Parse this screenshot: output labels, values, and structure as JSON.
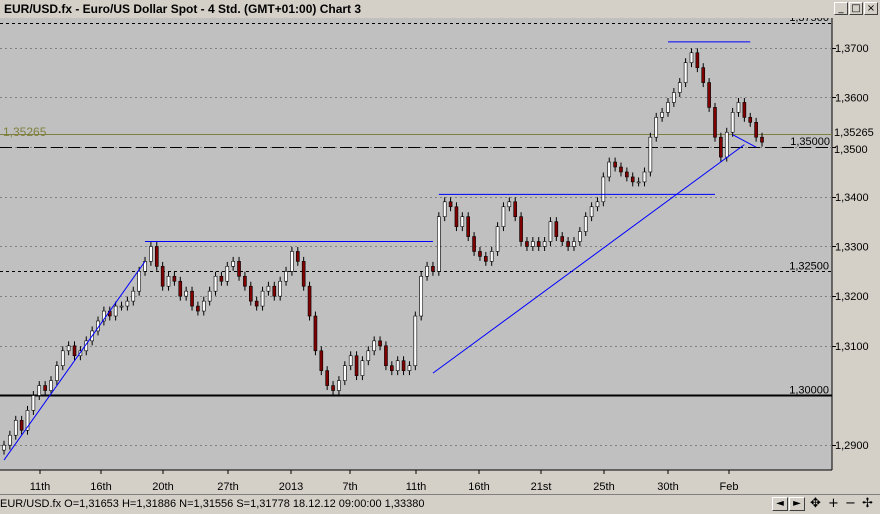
{
  "window": {
    "title": "EUR/USD.fx - Euro/US Dollar Spot - 4 Std. (GMT+01:00)   Chart 3"
  },
  "status": {
    "text": "EUR/USD.fx O=1,31653 H=1,31886 N=1,31556 S=1,31778   18.12.12 09:00:00 1,33380"
  },
  "icons": {
    "minimize": "minimize-icon",
    "maximize": "maximize-icon",
    "close": "close-icon"
  },
  "colors": {
    "plot_bg": "#c0c0c0",
    "trendline": "#0000ff",
    "candle_up": "#ffffff",
    "candle_down": "#800000",
    "ref_line": "#808040"
  },
  "chart_data": {
    "type": "candlestick",
    "symbol": "EUR/USD.fx",
    "timeframe": "4 Std.",
    "ylim": [
      1.285,
      1.376
    ],
    "y_axis_labels": [
      "1,37500",
      "1,3700",
      "1,3600",
      "1,35265",
      "1,35000",
      "1,3500",
      "1,3400",
      "1,3300",
      "1,32500",
      "1,3200",
      "1,3100",
      "1,30000",
      "1,2900"
    ],
    "x_labels": [
      "11th",
      "16th",
      "20th",
      "27th",
      "2013",
      "7th",
      "11th",
      "16th",
      "21st",
      "25th",
      "30th",
      "Feb"
    ],
    "left_label": "1,35265",
    "horizontal_lines": [
      {
        "price": 1.375,
        "style": "dashed"
      },
      {
        "price": 1.35,
        "style": "long-dash"
      },
      {
        "price": 1.325,
        "style": "dashed"
      },
      {
        "price": 1.3,
        "style": "solid-thick"
      },
      {
        "price": 1.35265,
        "style": "solid-ref"
      }
    ],
    "close_series": [
      1.29,
      1.292,
      1.295,
      1.293,
      1.297,
      1.3,
      1.302,
      1.301,
      1.303,
      1.306,
      1.309,
      1.31,
      1.308,
      1.309,
      1.311,
      1.313,
      1.315,
      1.317,
      1.316,
      1.318,
      1.318,
      1.319,
      1.321,
      1.325,
      1.327,
      1.33,
      1.326,
      1.322,
      1.324,
      1.323,
      1.32,
      1.321,
      1.318,
      1.317,
      1.319,
      1.321,
      1.324,
      1.323,
      1.326,
      1.327,
      1.324,
      1.322,
      1.319,
      1.318,
      1.321,
      1.322,
      1.32,
      1.323,
      1.325,
      1.329,
      1.327,
      1.322,
      1.316,
      1.309,
      1.305,
      1.302,
      1.301,
      1.303,
      1.306,
      1.308,
      1.304,
      1.307,
      1.309,
      1.311,
      1.31,
      1.306,
      1.305,
      1.307,
      1.305,
      1.306,
      1.316,
      1.324,
      1.326,
      1.325,
      1.336,
      1.339,
      1.338,
      1.334,
      1.336,
      1.332,
      1.329,
      1.328,
      1.327,
      1.329,
      1.334,
      1.338,
      1.339,
      1.336,
      1.331,
      1.33,
      1.331,
      1.33,
      1.331,
      1.335,
      1.332,
      1.331,
      1.33,
      1.331,
      1.333,
      1.336,
      1.338,
      1.339,
      1.344,
      1.347,
      1.346,
      1.345,
      1.344,
      1.343,
      1.343,
      1.345,
      1.352,
      1.356,
      1.357,
      1.359,
      1.361,
      1.363,
      1.367,
      1.369,
      1.366,
      1.363,
      1.358,
      1.352,
      1.348,
      1.353,
      1.357,
      1.359,
      1.356,
      1.355,
      1.352,
      1.351
    ],
    "trendlines": [
      {
        "from": [
          0,
          1.287
        ],
        "to": [
          24,
          1.327
        ]
      },
      {
        "from": [
          24,
          1.331
        ],
        "to": [
          73,
          1.331
        ]
      },
      {
        "from": [
          73,
          1.3045
        ],
        "to": [
          126,
          1.3505
        ]
      },
      {
        "from": [
          74,
          1.3405
        ],
        "to": [
          121,
          1.3405
        ]
      },
      {
        "from": [
          113,
          1.3712
        ],
        "to": [
          127,
          1.3712
        ]
      },
      {
        "from": [
          124,
          1.3525
        ],
        "to": [
          128,
          1.35
        ]
      }
    ]
  }
}
